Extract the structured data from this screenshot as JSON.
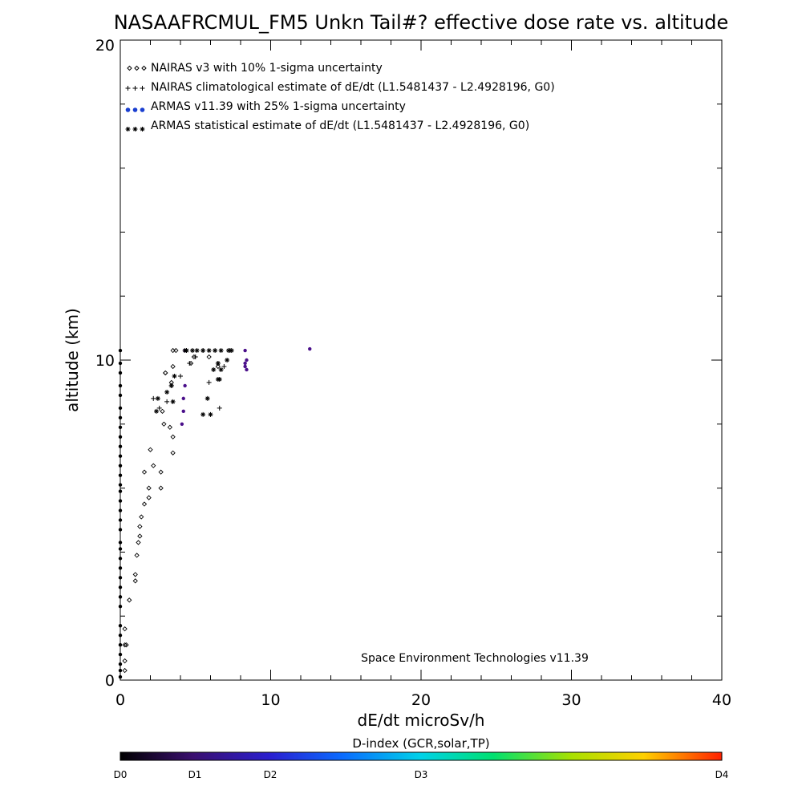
{
  "chart_data": {
    "type": "scatter",
    "title": "NASAAFRCMUL_FM5 Unkn Tail#? effective dose rate vs. altitude",
    "xlabel": "dE/dt microSv/h",
    "ylabel": "altitude (km)",
    "xlim": [
      0,
      40
    ],
    "ylim": [
      0,
      20
    ],
    "x_ticks": [
      "0",
      "10",
      "20",
      "30",
      "40"
    ],
    "y_ticks": [
      "0",
      "10",
      "20"
    ],
    "grid": false,
    "legend_position": "top-left",
    "legend": [
      {
        "marker": "diamond",
        "color": "#000000",
        "label": "NAIRAS v3 with 10% 1-sigma uncertainty"
      },
      {
        "marker": "plus",
        "color": "#000000",
        "label": "NAIRAS climatological estimate of dE/dt (L1.5481437 - L2.4928196, G0)"
      },
      {
        "marker": "filled-circle",
        "color": "#1a3fd0",
        "label": "ARMAS v11.39 with 25% 1-sigma uncertainty"
      },
      {
        "marker": "asterisk",
        "color": "#000000",
        "label": "ARMAS statistical estimate of dE/dt (L1.5481437 - L2.4928196, G0)"
      }
    ],
    "annotation": "Space Environment Technologies v11.39",
    "series": [
      {
        "name": "NAIRAS v3 with 10% 1-sigma uncertainty",
        "marker": "diamond",
        "x": [
          0.3,
          0.3,
          0.3,
          0.3,
          0.4,
          0.6,
          1.0,
          1.0,
          1.1,
          1.2,
          1.3,
          1.3,
          1.4,
          1.6,
          1.9,
          1.9,
          1.6,
          2.2,
          2.7,
          2.7,
          2.0,
          3.5,
          3.5,
          3.3,
          2.9,
          2.8,
          3.0,
          3.4,
          3.0,
          3.5,
          3.7,
          4.7,
          4.9,
          5.9,
          6.5,
          3.5
        ],
        "y": [
          0.3,
          0.6,
          1.1,
          1.6,
          1.1,
          2.5,
          3.1,
          3.3,
          3.9,
          4.3,
          4.5,
          4.8,
          5.1,
          5.5,
          5.7,
          6.0,
          6.5,
          6.7,
          6.0,
          6.5,
          7.2,
          7.1,
          7.6,
          7.9,
          8.0,
          8.4,
          9.6,
          9.3,
          9.6,
          9.8,
          10.3,
          9.9,
          10.1,
          10.1,
          9.8,
          10.3
        ]
      },
      {
        "name": "NAIRAS climatological estimate of dE/dt (L1.5481437 - L2.4928196, G0)",
        "marker": "plus",
        "x": [
          2.2,
          2.6,
          3.1,
          3.4,
          4.0,
          4.6,
          5.0,
          5.5,
          5.9,
          6.5,
          6.6,
          6.9,
          7.3
        ],
        "y": [
          8.8,
          8.5,
          8.7,
          9.2,
          9.5,
          9.9,
          10.1,
          10.3,
          9.3,
          9.9,
          8.5,
          9.8,
          10.3
        ]
      },
      {
        "name": "ARMAS v11.39 with 25% 1-sigma uncertainty",
        "marker": "filled-circle",
        "x": [
          0.0,
          0.0,
          0.0,
          0.0,
          0.0,
          0.0,
          0.0,
          0.0,
          0.0,
          0.0,
          0.0,
          0.0,
          0.0,
          0.0,
          0.0,
          0.0,
          0.0,
          0.0,
          0.0,
          0.0,
          0.0,
          0.0,
          0.0,
          0.0,
          0.0,
          0.0,
          0.0,
          0.0,
          0.0,
          0.0,
          0.0,
          0.0,
          0.0,
          0.0,
          4.1,
          4.2,
          4.2,
          4.3,
          4.3,
          8.4,
          8.3,
          8.3,
          8.4,
          8.3,
          12.6
        ],
        "y": [
          0.1,
          0.3,
          0.5,
          0.8,
          1.1,
          1.4,
          1.7,
          2.3,
          2.6,
          2.9,
          3.2,
          3.5,
          3.8,
          4.1,
          4.3,
          4.7,
          5.0,
          5.3,
          5.6,
          5.9,
          6.1,
          6.4,
          6.7,
          7.0,
          7.3,
          7.6,
          7.9,
          8.2,
          8.5,
          8.9,
          9.2,
          9.6,
          9.9,
          10.3,
          8.0,
          8.4,
          8.8,
          9.2,
          10.3,
          9.7,
          9.8,
          9.9,
          10.0,
          10.3,
          10.35
        ]
      },
      {
        "name": "ARMAS statistical estimate of dE/dt (L1.5481437 - L2.4928196, G0)",
        "marker": "asterisk",
        "x": [
          2.4,
          2.5,
          3.4,
          3.1,
          3.6,
          3.5,
          4.3,
          4.4,
          4.4,
          4.8,
          5.1,
          5.5,
          5.9,
          6.3,
          6.7,
          7.2,
          7.4,
          5.8,
          6.0,
          5.5,
          6.2,
          6.5,
          6.7,
          6.5,
          6.6,
          7.1
        ],
        "y": [
          8.4,
          8.8,
          9.2,
          9.0,
          9.5,
          8.7,
          10.3,
          10.3,
          10.3,
          10.3,
          10.3,
          10.3,
          10.3,
          10.3,
          10.3,
          10.3,
          10.3,
          8.8,
          8.3,
          8.3,
          9.7,
          9.9,
          9.7,
          9.4,
          9.4,
          10.0
        ]
      }
    ],
    "colorbar": {
      "title": "D-index (GCR,solar,TP)",
      "ticks": [
        "D0",
        "D1",
        "D2",
        "D3",
        "D4"
      ],
      "tick_values": [
        0,
        1,
        2,
        3,
        4
      ],
      "scale": [
        0,
        1,
        2,
        3,
        4
      ]
    },
    "colors": {
      "black": "#000000",
      "purple": "#4a0f8a",
      "blue": "#1a3fd0"
    }
  }
}
